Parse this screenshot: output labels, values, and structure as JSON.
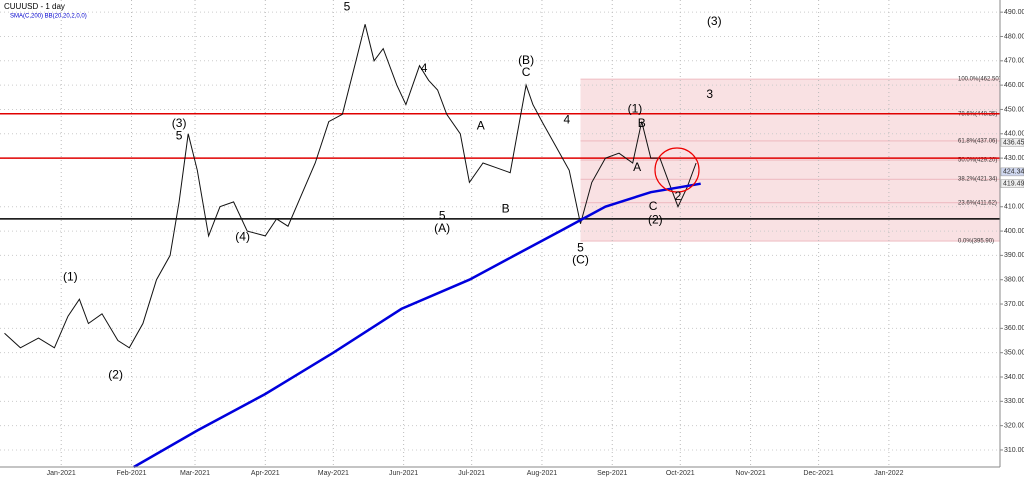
{
  "chart_data": {
    "type": "line",
    "title": "CUUUSD - 1 day",
    "subtitle": "SMA(C,200) BB(20,20,2,0,0)",
    "xlim": [
      -27,
      414
    ],
    "ylim": [
      303,
      495
    ],
    "xticks": [
      {
        "value": 0,
        "label": "Jan-2021"
      },
      {
        "value": 31,
        "label": "Feb-2021"
      },
      {
        "value": 59,
        "label": "Mar-2021"
      },
      {
        "value": 90,
        "label": "Apr-2021"
      },
      {
        "value": 120,
        "label": "May-2021"
      },
      {
        "value": 151,
        "label": "Jun-2021"
      },
      {
        "value": 181,
        "label": "Jul-2021"
      },
      {
        "value": 212,
        "label": "Aug-2021"
      },
      {
        "value": 243,
        "label": "Sep-2021"
      },
      {
        "value": 273,
        "label": "Oct-2021"
      },
      {
        "value": 304,
        "label": "Nov-2021"
      },
      {
        "value": 334,
        "label": "Dec-2021"
      },
      {
        "value": 365,
        "label": "Jan-2022"
      }
    ],
    "yticks": [
      {
        "value": 310,
        "label": "310.00"
      },
      {
        "value": 320,
        "label": "320.00"
      },
      {
        "value": 330,
        "label": "330.00"
      },
      {
        "value": 340,
        "label": "340.00"
      },
      {
        "value": 350,
        "label": "350.00"
      },
      {
        "value": 360,
        "label": "360.00"
      },
      {
        "value": 370,
        "label": "370.00"
      },
      {
        "value": 380,
        "label": "380.00"
      },
      {
        "value": 390,
        "label": "390.00"
      },
      {
        "value": 400,
        "label": "400.00"
      },
      {
        "value": 410,
        "label": "410.00"
      },
      {
        "value": 430,
        "label": "430.00"
      },
      {
        "value": 440,
        "label": "440.00"
      },
      {
        "value": 450,
        "label": "450.00"
      },
      {
        "value": 460,
        "label": "460.00"
      },
      {
        "value": 470,
        "label": "470.00"
      },
      {
        "value": 480,
        "label": "480.00"
      },
      {
        "value": 490,
        "label": "490.00"
      }
    ],
    "grid": true,
    "series": [
      {
        "color": "#111111",
        "x": [
          -25,
          -18,
          -10,
          -3,
          3,
          8,
          12,
          18,
          25,
          30,
          36,
          42,
          48,
          52,
          56,
          60,
          65,
          70,
          76,
          82,
          90,
          95,
          100,
          106,
          112,
          118,
          124,
          130,
          134,
          138,
          142,
          148,
          152,
          158,
          162,
          166,
          170,
          176,
          180,
          186,
          192,
          198,
          205,
          208,
          212,
          218,
          224,
          229,
          234,
          240,
          246,
          252,
          256,
          260,
          264,
          268,
          272,
          276,
          280
        ],
        "values": [
          358,
          352,
          356,
          352,
          365,
          372,
          362,
          366,
          355,
          352,
          362,
          380,
          390,
          412,
          440,
          425,
          398,
          410,
          412,
          400,
          398,
          405,
          402,
          415,
          428,
          445,
          448,
          470,
          485,
          470,
          475,
          460,
          452,
          468,
          462,
          458,
          448,
          440,
          420,
          428,
          426,
          424,
          460,
          452,
          445,
          435,
          425,
          403,
          420,
          430,
          432,
          428,
          445,
          430,
          430,
          420,
          410,
          418,
          428
        ]
      },
      {
        "color": "#0000dd",
        "x": [
          32,
          60,
          90,
          120,
          150,
          180,
          200,
          220,
          240,
          260,
          282
        ],
        "values": [
          303,
          318,
          333,
          350,
          368,
          380,
          390,
          400,
          410,
          416,
          419.49
        ]
      }
    ],
    "horizontal_lines": [
      {
        "value": 448.25,
        "color": "#e00000"
      },
      {
        "value": 430,
        "color": "#e00000"
      },
      {
        "value": 405,
        "color": "#000000"
      }
    ],
    "fib": {
      "start_x": 229,
      "color": "#f7d9dc",
      "levels": [
        {
          "value": 462.5,
          "label": "100.0%(462.50)"
        },
        {
          "value": 448.25,
          "label": "78.6%(448.25)"
        },
        {
          "value": 437.06,
          "label": "61.8%(437.06)"
        },
        {
          "value": 429.2,
          "label": "50.0%(429.20)"
        },
        {
          "value": 421.34,
          "label": "38.2%(421.34)"
        },
        {
          "value": 411.62,
          "label": "23.6%(411.62)"
        },
        {
          "value": 395.9,
          "label": "0.0%(395.90)"
        }
      ]
    },
    "price_tags": [
      436.45,
      424.34,
      419.49
    ],
    "annotations": [
      {
        "text": "(3)",
        "x": 288,
        "y": 486
      },
      {
        "text": "3",
        "x": 286,
        "y": 456
      },
      {
        "text": "(1)",
        "x": 253,
        "y": 450
      },
      {
        "text": "B",
        "x": 256,
        "y": 444
      },
      {
        "text": "A",
        "x": 254,
        "y": 426
      },
      {
        "text": "C",
        "x": 261,
        "y": 410
      },
      {
        "text": "(2)",
        "x": 262,
        "y": 404.5
      },
      {
        "text": "2",
        "x": 272,
        "y": 414
      },
      {
        "text": "(B)",
        "x": 205,
        "y": 470
      },
      {
        "text": "C",
        "x": 205,
        "y": 465
      },
      {
        "text": "5",
        "x": 229,
        "y": 393
      },
      {
        "text": "(C)",
        "x": 229,
        "y": 388
      },
      {
        "text": "5",
        "x": 168,
        "y": 406
      },
      {
        "text": "(A)",
        "x": 168,
        "y": 401
      },
      {
        "text": "(3)",
        "x": 52,
        "y": 444
      },
      {
        "text": "5",
        "x": 52,
        "y": 439
      },
      {
        "text": "(4)",
        "x": 80,
        "y": 397.5
      },
      {
        "text": "(1)",
        "x": 4,
        "y": 381
      },
      {
        "text": "(2)",
        "x": 24,
        "y": 340.7
      },
      {
        "text": "5",
        "x": 126,
        "y": 492
      },
      {
        "text": "4",
        "x": 160,
        "y": 466.6
      },
      {
        "text": "A",
        "x": 185,
        "y": 443
      },
      {
        "text": "B",
        "x": 196,
        "y": 409
      },
      {
        "text": "4",
        "x": 223,
        "y": 445.6
      }
    ]
  }
}
